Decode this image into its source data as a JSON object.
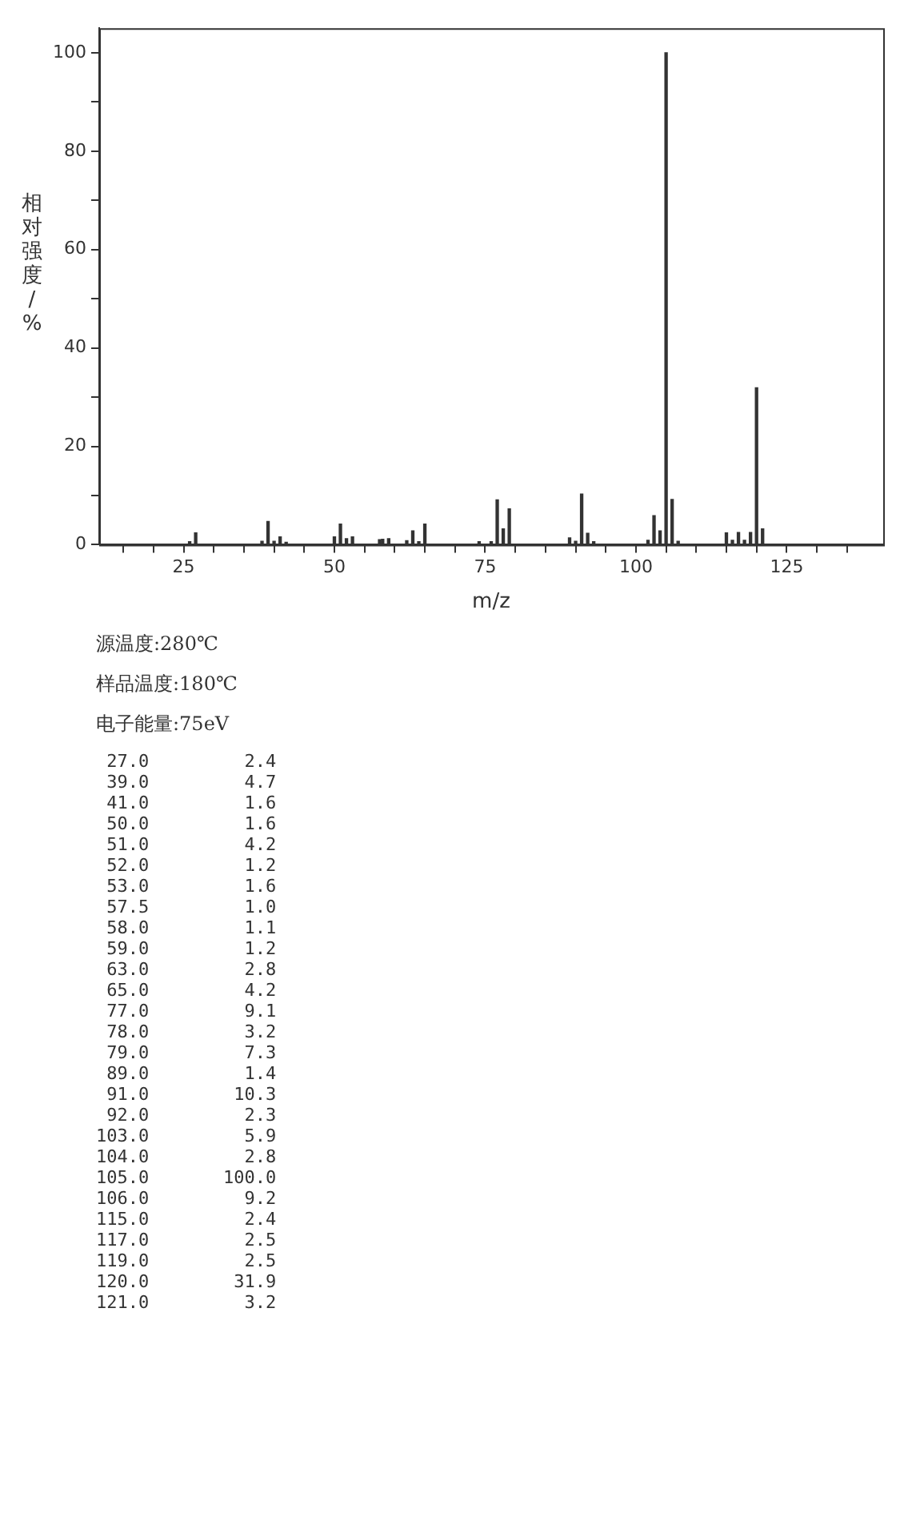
{
  "chart_data": {
    "type": "bar",
    "xlabel": "m/z",
    "ylabel": "相对强度/%",
    "annotations": [
      "源温度:280℃",
      "样品温度:180℃",
      "电子能量:75eV",
      " 27.0         2.4",
      " 39.0         4.7",
      " 41.0         1.6",
      " 50.0         1.6",
      " 51.0         4.2",
      " 52.0         1.2",
      " 53.0         1.6",
      " 57.5         1.0",
      " 58.0         1.1",
      " 59.0         1.2",
      " 63.0         2.8",
      " 65.0         4.2",
      " 77.0         9.1",
      " 78.0         3.2",
      " 79.0         7.3",
      " 89.0         1.4",
      " 91.0        10.3",
      " 92.0         2.3",
      "103.0         5.9",
      "104.0         2.8",
      "105.0       100.0",
      "106.0         9.2",
      "115.0         2.4",
      "117.0         2.5",
      "119.0         2.5",
      "120.0        31.9",
      "121.0         3.2"
    ],
    "x": [
      26,
      27,
      38,
      39,
      40,
      41,
      42,
      50,
      51,
      52,
      53,
      57.5,
      58,
      59,
      62,
      63,
      64,
      65,
      74,
      76,
      77,
      78,
      79,
      89,
      90,
      91,
      92,
      93,
      102,
      103,
      104,
      105,
      106,
      107,
      115,
      116,
      117,
      118,
      119,
      120,
      121
    ],
    "series": [
      {
        "color": "#333333",
        "values": [
          0.6,
          2.4,
          0.7,
          4.7,
          0.7,
          1.6,
          0.5,
          1.6,
          4.2,
          1.2,
          1.6,
          1.0,
          1.1,
          1.2,
          0.8,
          2.8,
          0.6,
          4.2,
          0.6,
          0.6,
          9.1,
          3.2,
          7.3,
          1.4,
          0.7,
          10.3,
          2.3,
          0.6,
          0.9,
          5.9,
          2.8,
          100.0,
          9.2,
          0.7,
          2.4,
          0.9,
          2.5,
          0.9,
          2.5,
          31.9,
          3.2
        ]
      }
    ],
    "xlim": [
      11,
      141
    ],
    "xticks": [
      {
        "value": 15,
        "label": null
      },
      {
        "value": 20,
        "label": null
      },
      25,
      {
        "value": 30,
        "label": null
      },
      {
        "value": 35,
        "label": null
      },
      {
        "value": 40,
        "label": null
      },
      {
        "value": 45,
        "label": null
      },
      50,
      {
        "value": 55,
        "label": null
      },
      {
        "value": 60,
        "label": null
      },
      {
        "value": 65,
        "label": null
      },
      {
        "value": 70,
        "label": null
      },
      75,
      {
        "value": 80,
        "label": null
      },
      {
        "value": 85,
        "label": null
      },
      {
        "value": 90,
        "label": null
      },
      {
        "value": 95,
        "label": null
      },
      100,
      {
        "value": 105,
        "label": null
      },
      {
        "value": 110,
        "label": null
      },
      {
        "value": 115,
        "label": null
      },
      {
        "value": 120,
        "label": null
      },
      125,
      {
        "value": 130,
        "label": null
      },
      {
        "value": 135,
        "label": null
      }
    ],
    "ylim": [
      0,
      105
    ],
    "yticks": [
      0,
      {
        "value": 10,
        "label": null
      },
      20,
      {
        "value": 30,
        "label": null
      },
      40,
      {
        "value": 50,
        "label": null
      },
      60,
      {
        "value": 70,
        "label": null
      },
      80,
      {
        "value": 90,
        "label": null
      },
      100
    ],
    "grid": false,
    "legend": false
  }
}
